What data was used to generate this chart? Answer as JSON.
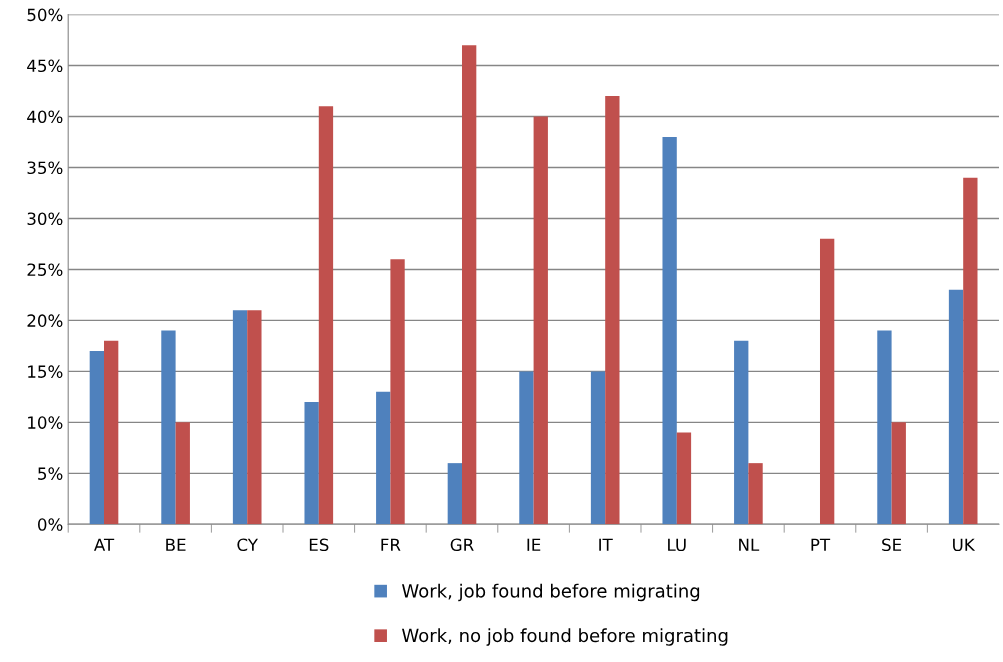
{
  "chart_data": {
    "type": "bar",
    "categories": [
      "AT",
      "BE",
      "CY",
      "ES",
      "FR",
      "GR",
      "IE",
      "IT",
      "LU",
      "NL",
      "PT",
      "SE",
      "UK"
    ],
    "series": [
      {
        "name": "Work, job found before migrating",
        "color": "#4f81bd",
        "values": [
          17,
          19,
          21,
          12,
          13,
          6,
          15,
          15,
          38,
          18,
          0,
          19,
          23
        ]
      },
      {
        "name": "Work, no job found before migrating",
        "color": "#c0504d",
        "values": [
          18,
          10,
          21,
          41,
          26,
          47,
          40,
          42,
          9,
          6,
          28,
          10,
          34
        ]
      }
    ],
    "ylim": [
      0,
      50
    ],
    "yticks": [
      {
        "value": 0,
        "label": "0%"
      },
      {
        "value": 5,
        "label": "5%"
      },
      {
        "value": 10,
        "label": "10%"
      },
      {
        "value": 15,
        "label": "15%"
      },
      {
        "value": 20,
        "label": "20%"
      },
      {
        "value": 25,
        "label": "25%"
      },
      {
        "value": 30,
        "label": "30%"
      },
      {
        "value": 35,
        "label": "35%"
      },
      {
        "value": 40,
        "label": "40%"
      },
      {
        "value": 45,
        "label": "45%"
      },
      {
        "value": 50,
        "label": "50%"
      }
    ],
    "grid": "y",
    "legend": "bottom"
  }
}
